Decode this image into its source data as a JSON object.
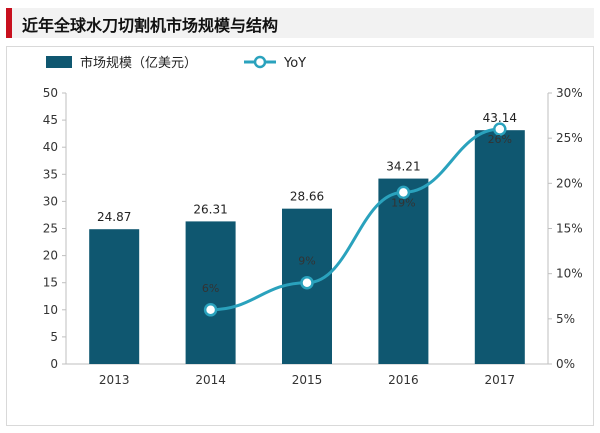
{
  "header": {
    "title": "近年全球水刀切割机市场规模与结构"
  },
  "chart_data": {
    "type": "bar",
    "categories": [
      "2013",
      "2014",
      "2015",
      "2016",
      "2017"
    ],
    "series": [
      {
        "name": "市场规模（亿美元）",
        "type": "bar",
        "axis": "left",
        "values": [
          24.87,
          26.31,
          28.66,
          34.21,
          43.14
        ],
        "labels": [
          "24.87",
          "26.31",
          "28.66",
          "34.21",
          "43.14"
        ]
      },
      {
        "name": "YoY",
        "type": "line",
        "axis": "right",
        "values": [
          null,
          6,
          9,
          19,
          26
        ],
        "labels": [
          "",
          "6%",
          "9%",
          "19%",
          "26%"
        ]
      }
    ],
    "ylim": [
      0,
      50
    ],
    "yticks": [
      "0",
      "5",
      "10",
      "15",
      "20",
      "25",
      "30",
      "35",
      "40",
      "45",
      "50"
    ],
    "y2lim": [
      0,
      30
    ],
    "y2ticks": [
      "0%",
      "5%",
      "10%",
      "15%",
      "20%",
      "25%",
      "30%"
    ],
    "grid": false,
    "legend": "top-left",
    "colors": {
      "bar": "#0f5770",
      "line": "#2aa2bd",
      "marker_fill": "#ffffff"
    }
  }
}
